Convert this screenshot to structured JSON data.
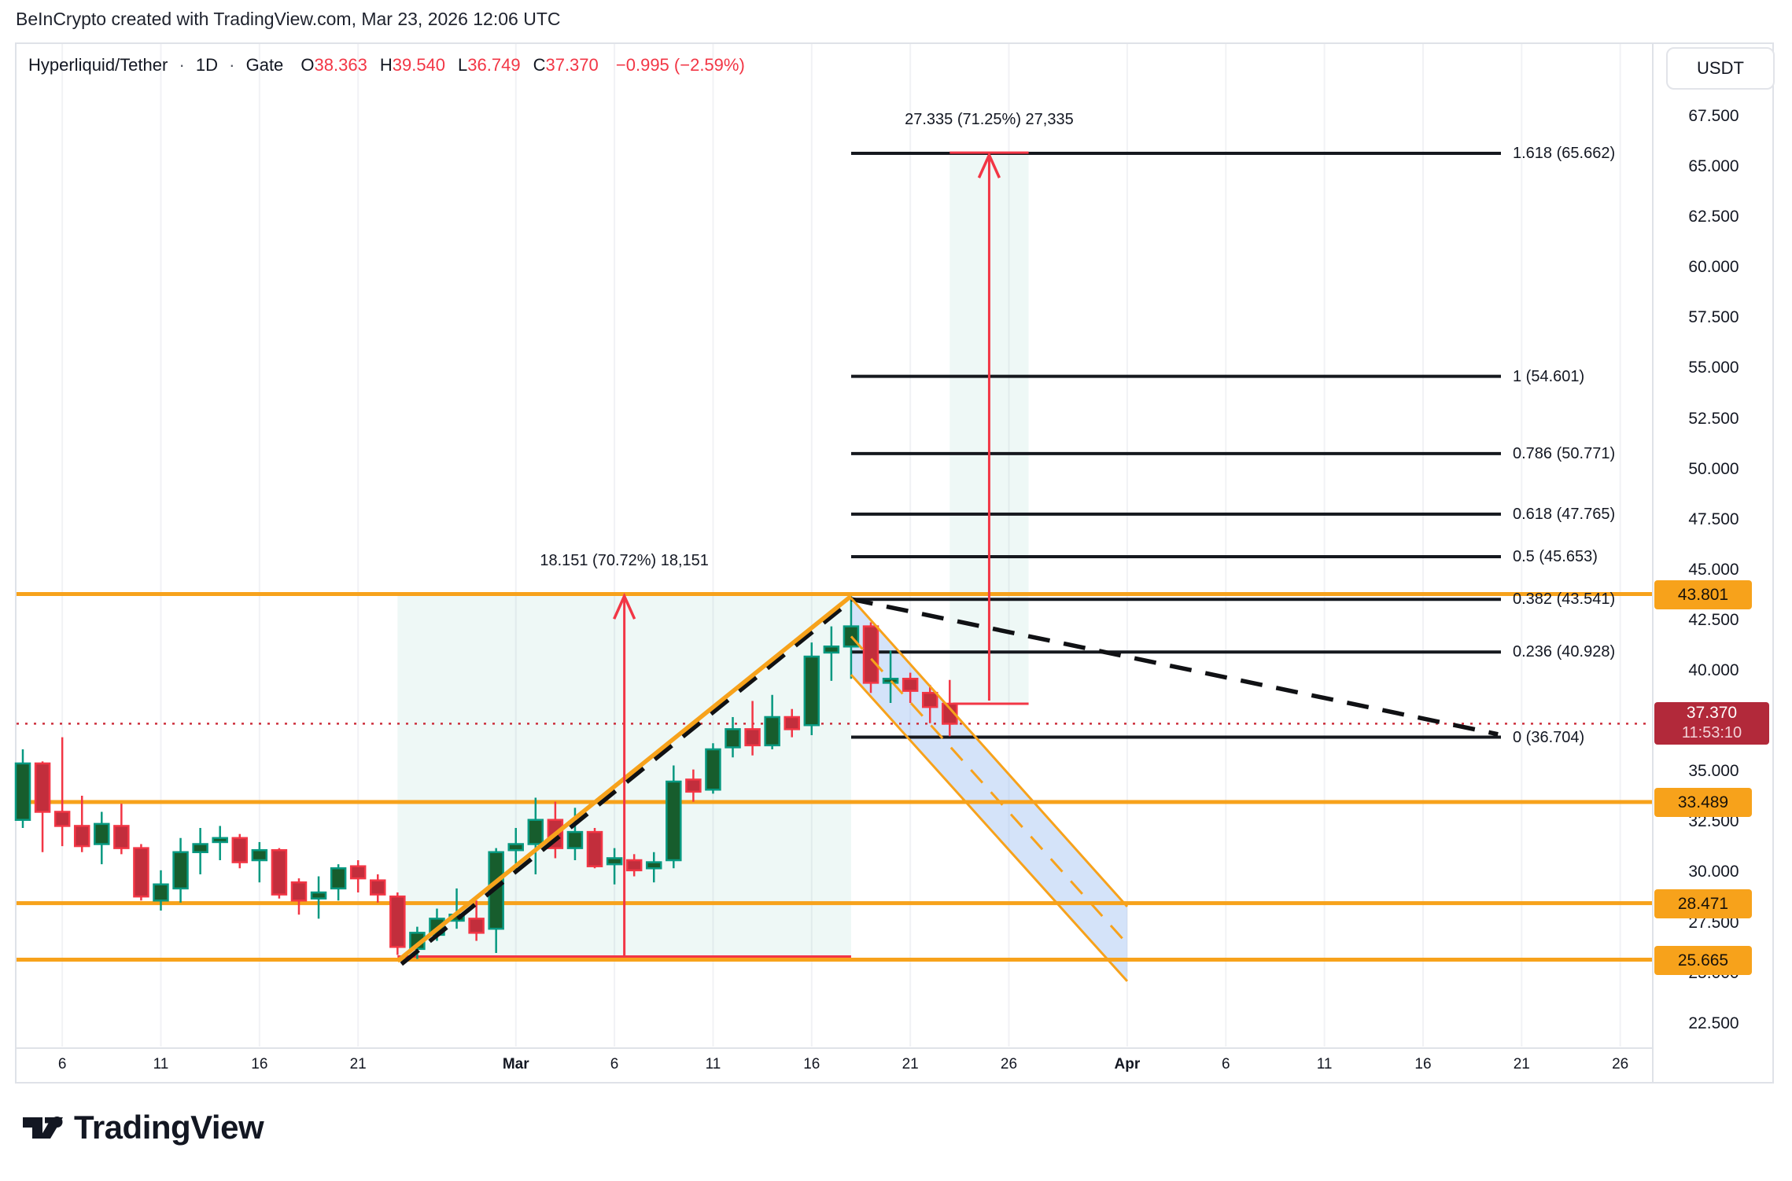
{
  "topbar": {
    "text": "BeInCrypto created with TradingView.com, Mar 23, 2026 12:06 UTC"
  },
  "legend": {
    "symbol": "Hyperliquid/Tether",
    "separator": "·",
    "interval": "1D",
    "exchange": "Gate",
    "ohlc": [
      {
        "k": "O",
        "v": "38.363"
      },
      {
        "k": "H",
        "v": "39.540"
      },
      {
        "k": "L",
        "v": "36.749"
      },
      {
        "k": "C",
        "v": "37.370"
      }
    ],
    "change": "−0.995 (−2.59%)"
  },
  "price_axis": {
    "currency": "USDT",
    "ticks": [
      "67.500",
      "65.000",
      "62.500",
      "60.000",
      "57.500",
      "55.000",
      "52.500",
      "50.000",
      "47.500",
      "45.000",
      "42.500",
      "40.000",
      "35.000",
      "32.500",
      "30.000",
      "27.500",
      "25.000",
      "22.500"
    ]
  },
  "time_axis": {
    "ticks": [
      {
        "label": "6",
        "day": 2
      },
      {
        "label": "11",
        "day": 7
      },
      {
        "label": "16",
        "day": 12
      },
      {
        "label": "21",
        "day": 17
      },
      {
        "label": "Mar",
        "day": 25,
        "bold": true
      },
      {
        "label": "6",
        "day": 30
      },
      {
        "label": "11",
        "day": 35
      },
      {
        "label": "16",
        "day": 40
      },
      {
        "label": "21",
        "day": 45
      },
      {
        "label": "26",
        "day": 50
      },
      {
        "label": "Apr",
        "day": 56,
        "bold": true
      },
      {
        "label": "6",
        "day": 61
      },
      {
        "label": "11",
        "day": 66
      },
      {
        "label": "16",
        "day": 71
      },
      {
        "label": "21",
        "day": 76
      },
      {
        "label": "26",
        "day": 81
      }
    ]
  },
  "price_label": {
    "value": "37.370",
    "countdown": "11:53:10"
  },
  "watermark": {
    "brand": "TradingView"
  },
  "colors": {
    "up_fill": "#175D2D",
    "up_stroke": "#089981",
    "down_fill": "#C22E3C",
    "down_stroke": "#F23645",
    "orange": "#F7A21B",
    "red": "#F23645",
    "black_line": "#15181E",
    "blue_fill": "rgba(147,185,240,0.40)",
    "green_box": "rgba(8,153,129,0.07)",
    "grid": "#F1F2F5",
    "price_line_red": "#CC2F3C",
    "tag_red_bg": "#B2293A"
  },
  "chart_data": {
    "type": "candlestick",
    "title": "Hyperliquid/Tether · 1D · Gate",
    "exchange": "Gate",
    "interval": "1D",
    "quote_currency": "USDT",
    "ylim": [
      21.3,
      71.1
    ],
    "grid": "vertical-only",
    "candles": [
      {
        "d": "Feb 4",
        "o": 32.6,
        "h": 36.1,
        "l": 32.2,
        "c": 35.4
      },
      {
        "d": "Feb 5",
        "o": 35.4,
        "h": 35.5,
        "l": 31.0,
        "c": 33.0
      },
      {
        "d": "Feb 6",
        "o": 33.0,
        "h": 36.7,
        "l": 31.3,
        "c": 32.3
      },
      {
        "d": "Feb 7",
        "o": 32.3,
        "h": 33.8,
        "l": 31.0,
        "c": 31.3
      },
      {
        "d": "Feb 8",
        "o": 31.4,
        "h": 33.0,
        "l": 30.4,
        "c": 32.4
      },
      {
        "d": "Feb 9",
        "o": 32.3,
        "h": 33.4,
        "l": 30.9,
        "c": 31.2
      },
      {
        "d": "Feb 10",
        "o": 31.2,
        "h": 31.4,
        "l": 28.6,
        "c": 28.8
      },
      {
        "d": "Feb 11",
        "o": 28.6,
        "h": 30.1,
        "l": 28.1,
        "c": 29.4
      },
      {
        "d": "Feb 12",
        "o": 29.2,
        "h": 31.7,
        "l": 28.5,
        "c": 31.0
      },
      {
        "d": "Feb 13",
        "o": 31.0,
        "h": 32.2,
        "l": 29.9,
        "c": 31.4
      },
      {
        "d": "Feb 14",
        "o": 31.5,
        "h": 32.3,
        "l": 30.6,
        "c": 31.7
      },
      {
        "d": "Feb 15",
        "o": 31.7,
        "h": 31.9,
        "l": 30.2,
        "c": 30.5
      },
      {
        "d": "Feb 16",
        "o": 30.6,
        "h": 31.5,
        "l": 29.5,
        "c": 31.1
      },
      {
        "d": "Feb 17",
        "o": 31.1,
        "h": 31.2,
        "l": 28.7,
        "c": 28.9
      },
      {
        "d": "Feb 18",
        "o": 29.5,
        "h": 29.7,
        "l": 27.9,
        "c": 28.6
      },
      {
        "d": "Feb 19",
        "o": 28.7,
        "h": 29.8,
        "l": 27.7,
        "c": 29.0
      },
      {
        "d": "Feb 20",
        "o": 29.2,
        "h": 30.4,
        "l": 28.6,
        "c": 30.2
      },
      {
        "d": "Feb 21",
        "o": 30.3,
        "h": 30.6,
        "l": 29.0,
        "c": 29.7
      },
      {
        "d": "Feb 22",
        "o": 29.6,
        "h": 29.9,
        "l": 28.5,
        "c": 28.9
      },
      {
        "d": "Feb 23",
        "o": 28.8,
        "h": 29.0,
        "l": 25.9,
        "c": 26.3
      },
      {
        "d": "Feb 24",
        "o": 26.2,
        "h": 27.3,
        "l": 25.7,
        "c": 27.0
      },
      {
        "d": "Feb 25",
        "o": 26.9,
        "h": 28.2,
        "l": 26.6,
        "c": 27.7
      },
      {
        "d": "Feb 26",
        "o": 27.6,
        "h": 29.2,
        "l": 27.2,
        "c": 27.9
      },
      {
        "d": "Feb 27",
        "o": 27.7,
        "h": 28.6,
        "l": 26.6,
        "c": 27.0
      },
      {
        "d": "Feb 28",
        "o": 27.2,
        "h": 31.2,
        "l": 26.0,
        "c": 31.0
      },
      {
        "d": "Mar 1",
        "o": 31.1,
        "h": 32.2,
        "l": 30.0,
        "c": 31.4
      },
      {
        "d": "Mar 2",
        "o": 31.4,
        "h": 33.7,
        "l": 29.9,
        "c": 32.6
      },
      {
        "d": "Mar 3",
        "o": 32.6,
        "h": 33.5,
        "l": 30.7,
        "c": 31.2
      },
      {
        "d": "Mar 4",
        "o": 31.2,
        "h": 33.2,
        "l": 30.6,
        "c": 32.0
      },
      {
        "d": "Mar 5",
        "o": 32.0,
        "h": 32.2,
        "l": 30.2,
        "c": 30.3
      },
      {
        "d": "Mar 6",
        "o": 30.4,
        "h": 31.2,
        "l": 29.4,
        "c": 30.7
      },
      {
        "d": "Mar 7",
        "o": 30.6,
        "h": 30.9,
        "l": 29.8,
        "c": 30.1
      },
      {
        "d": "Mar 8",
        "o": 30.2,
        "h": 31.0,
        "l": 29.5,
        "c": 30.5
      },
      {
        "d": "Mar 9",
        "o": 30.6,
        "h": 35.3,
        "l": 30.2,
        "c": 34.5
      },
      {
        "d": "Mar 10",
        "o": 34.6,
        "h": 35.1,
        "l": 33.5,
        "c": 34.0
      },
      {
        "d": "Mar 11",
        "o": 34.1,
        "h": 36.4,
        "l": 33.9,
        "c": 36.1
      },
      {
        "d": "Mar 12",
        "o": 36.2,
        "h": 37.7,
        "l": 35.7,
        "c": 37.1
      },
      {
        "d": "Mar 13",
        "o": 37.1,
        "h": 38.5,
        "l": 35.8,
        "c": 36.3
      },
      {
        "d": "Mar 14",
        "o": 36.3,
        "h": 38.8,
        "l": 36.1,
        "c": 37.7
      },
      {
        "d": "Mar 15",
        "o": 37.7,
        "h": 38.1,
        "l": 36.7,
        "c": 37.1
      },
      {
        "d": "Mar 16",
        "o": 37.3,
        "h": 41.4,
        "l": 36.8,
        "c": 40.7
      },
      {
        "d": "Mar 17",
        "o": 40.9,
        "h": 42.2,
        "l": 39.5,
        "c": 41.2
      },
      {
        "d": "Mar 18",
        "o": 41.2,
        "h": 43.7,
        "l": 39.6,
        "c": 42.2
      },
      {
        "d": "Mar 19",
        "o": 42.2,
        "h": 42.4,
        "l": 38.9,
        "c": 39.4
      },
      {
        "d": "Mar 20",
        "o": 39.4,
        "h": 41.0,
        "l": 38.4,
        "c": 39.6
      },
      {
        "d": "Mar 21",
        "o": 39.6,
        "h": 39.9,
        "l": 38.4,
        "c": 39.0
      },
      {
        "d": "Mar 22",
        "o": 38.9,
        "h": 39.3,
        "l": 37.4,
        "c": 38.2
      },
      {
        "d": "Mar 23",
        "o": 38.363,
        "h": 39.54,
        "l": 36.749,
        "c": 37.37
      }
    ],
    "fib_levels": [
      {
        "ratio": "1.618",
        "price": "65.662"
      },
      {
        "ratio": "1",
        "price": "54.601"
      },
      {
        "ratio": "0.786",
        "price": "50.771"
      },
      {
        "ratio": "0.618",
        "price": "47.765"
      },
      {
        "ratio": "0.5",
        "price": "45.653"
      },
      {
        "ratio": "0.382",
        "price": "43.541"
      },
      {
        "ratio": "0.236",
        "price": "40.928"
      },
      {
        "ratio": "0",
        "price": "36.704"
      }
    ],
    "horizontal_levels": [
      "43.801",
      "33.489",
      "28.471",
      "25.665"
    ],
    "current_price": "37.370",
    "measurements": [
      {
        "label": "18.151 (70.72%) 18,151",
        "day_from": 19,
        "day_to": 42,
        "price_from": 25.665,
        "price_to": 43.816
      },
      {
        "label": "27.335 (71.25%) 27,335",
        "day_from": 47,
        "day_to": 51,
        "price_from": 38.363,
        "price_to": 65.698
      }
    ],
    "channel": {
      "day_from": 42,
      "day_to": 56,
      "upper_price_from": 43.6,
      "upper_price_to": 28.3,
      "lower_price_from": 39.8,
      "lower_price_to": 24.6
    },
    "trendlines": {
      "up_solid": {
        "day_from": 19,
        "price_from": 25.6,
        "day_to": 42,
        "price_to": 43.7
      },
      "up_dashed": {
        "day_from": 19.2,
        "price_from": 25.45,
        "day_to": 42.1,
        "price_to": 43.55
      },
      "down_dashed": {
        "day_from": 42,
        "price_from": 43.55,
        "day_to": 74.8,
        "price_to": 36.85
      }
    }
  }
}
